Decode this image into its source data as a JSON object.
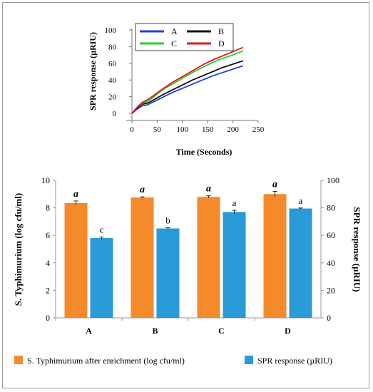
{
  "chart_data": [
    {
      "type": "line",
      "xlabel": "Time (Seconds)",
      "ylabel": "SPR response (µRIU)",
      "xlim": [
        0,
        250
      ],
      "ylim": [
        0,
        100
      ],
      "x_ticks": [
        "0",
        "50",
        "100",
        "150",
        "200",
        "250"
      ],
      "y_ticks": [
        "0",
        "20",
        "40",
        "60",
        "80",
        "100"
      ],
      "grid": false,
      "legend_position": "top-left",
      "series": [
        {
          "name": "A",
          "color": "#1f3fd6",
          "x": [
            0,
            10,
            20,
            30,
            40,
            60,
            80,
            100,
            120,
            140,
            160,
            180,
            200,
            220
          ],
          "y": [
            0,
            5,
            9,
            10,
            13,
            19,
            25,
            30,
            35,
            40,
            45,
            49,
            53,
            57
          ]
        },
        {
          "name": "B",
          "color": "#111111",
          "x": [
            0,
            10,
            20,
            30,
            40,
            60,
            80,
            100,
            120,
            140,
            160,
            180,
            200,
            220
          ],
          "y": [
            0,
            6,
            11,
            12,
            15,
            22,
            28,
            34,
            40,
            45,
            50,
            55,
            59,
            63
          ]
        },
        {
          "name": "C",
          "color": "#2ecc2e",
          "x": [
            0,
            10,
            20,
            30,
            40,
            60,
            80,
            100,
            120,
            140,
            160,
            180,
            200,
            220
          ],
          "y": [
            0,
            7,
            12,
            14,
            18,
            28,
            35,
            42,
            49,
            55,
            61,
            66,
            70,
            75
          ]
        },
        {
          "name": "D",
          "color": "#e0161c",
          "x": [
            0,
            10,
            20,
            30,
            40,
            60,
            80,
            100,
            120,
            140,
            160,
            180,
            200,
            220
          ],
          "y": [
            0,
            7,
            13,
            16,
            20,
            29,
            37,
            44,
            51,
            58,
            64,
            69,
            74,
            79
          ]
        }
      ]
    },
    {
      "type": "bar",
      "categories": [
        "A",
        "B",
        "C",
        "D"
      ],
      "ylabel_left": "S. Typhimurium (log cfu/ml)",
      "ylabel_right": "SPR response (µRIU)",
      "ylim_left": [
        0,
        10
      ],
      "ylim_right": [
        0,
        100
      ],
      "y_ticks_left": [
        "0",
        "2",
        "4",
        "6",
        "8",
        "10"
      ],
      "y_ticks_right": [
        "0",
        "20",
        "40",
        "60",
        "80",
        "100"
      ],
      "grid": false,
      "legend_position": "bottom",
      "series": [
        {
          "name": "S. Typhimurium after enrichment (log cfu/ml)",
          "axis": "left",
          "color": "#f58a2a",
          "values": [
            8.35,
            8.75,
            8.8,
            9.0
          ],
          "errors": [
            0.15,
            0.05,
            0.08,
            0.2
          ],
          "labels": [
            "a",
            "a",
            "a",
            "a"
          ]
        },
        {
          "name": "SPR response (µRIU)",
          "axis": "right",
          "color": "#2a9ad8",
          "values": [
            58,
            65,
            77,
            79.5
          ],
          "errors": [
            0.8,
            0.5,
            1.2,
            0.4
          ],
          "labels": [
            "c",
            "b",
            "a",
            "a"
          ]
        }
      ]
    }
  ]
}
